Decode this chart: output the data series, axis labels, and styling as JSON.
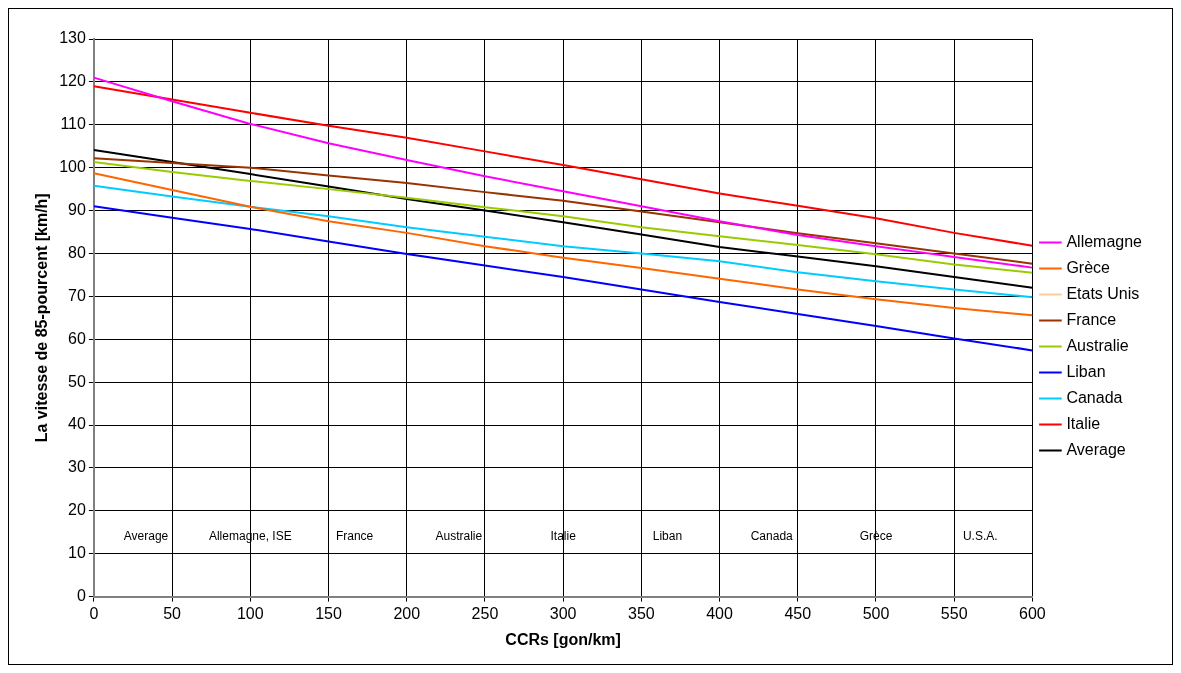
{
  "chart_data": {
    "type": "line",
    "xlabel": "CCRs [gon/km]",
    "ylabel": "La vitesse de 85-pourcent [km/h]",
    "x": [
      0,
      50,
      100,
      150,
      200,
      250,
      300,
      350,
      400,
      450,
      500,
      550,
      600
    ],
    "series": [
      {
        "name": "Allemagne",
        "color": "#ff00ff",
        "values": [
          121,
          115.5,
          110.2,
          105.7,
          101.8,
          98,
          94.5,
          91,
          87.5,
          84.3,
          81.7,
          79.2,
          76.7
        ]
      },
      {
        "name": "Grèce",
        "color": "#ff6600",
        "values": [
          98.7,
          94.8,
          90.9,
          87.5,
          84.8,
          81.7,
          79,
          76.6,
          74.1,
          71.6,
          69.3,
          67.3,
          65.6
        ]
      },
      {
        "name": "Etats Unis",
        "color": "#ffcc99",
        "values": [
          null,
          null,
          null,
          null,
          null,
          null,
          null,
          null,
          null,
          null,
          null,
          null,
          null
        ]
      },
      {
        "name": "France",
        "color": "#993300",
        "values": [
          102.2,
          101.1,
          100,
          98.2,
          96.4,
          94.3,
          92.3,
          89.8,
          87.3,
          84.7,
          82.4,
          80,
          77.6
        ]
      },
      {
        "name": "Australie",
        "color": "#99cc00",
        "values": [
          101.3,
          99,
          96.9,
          95,
          93,
          90.8,
          88.7,
          86.1,
          84,
          82,
          79.8,
          77.4,
          75.5
        ]
      },
      {
        "name": "Liban",
        "color": "#0000ff",
        "values": [
          91,
          88.3,
          85.7,
          82.8,
          79.9,
          77.2,
          74.5,
          71.6,
          68.7,
          65.9,
          63.1,
          60.2,
          57.4
        ]
      },
      {
        "name": "Canada",
        "color": "#00ccff",
        "values": [
          95.8,
          93.3,
          90.9,
          88.7,
          86.1,
          83.9,
          81.7,
          80,
          78.2,
          75.6,
          73.5,
          71.6,
          69.8
        ]
      },
      {
        "name": "Italie",
        "color": "#ff0000",
        "values": [
          119,
          115.9,
          112.8,
          109.8,
          107,
          103.8,
          100.6,
          97.3,
          94,
          91.1,
          88.2,
          84.8,
          81.8
        ]
      },
      {
        "name": "Average",
        "color": "#000000",
        "values": [
          104.1,
          101.3,
          98.5,
          95.6,
          92.7,
          90,
          87.3,
          84.4,
          81.5,
          79.3,
          77,
          74.5,
          72
        ]
      }
    ],
    "xlim": [
      0,
      600
    ],
    "xticks": [
      0,
      50,
      100,
      150,
      200,
      250,
      300,
      350,
      400,
      450,
      500,
      550,
      600
    ],
    "ylim": [
      0,
      130
    ],
    "yticks": [
      0,
      10,
      20,
      30,
      40,
      50,
      60,
      70,
      80,
      90,
      100,
      110,
      120,
      130
    ],
    "grid": true,
    "legend": "right",
    "marker": "none",
    "line_style": "solid",
    "annotations": [
      "Average",
      "Allemagne, ISE",
      "France",
      "Australie",
      "Italie",
      "Liban",
      "Canada",
      "Grèce",
      "U.S.A."
    ]
  }
}
